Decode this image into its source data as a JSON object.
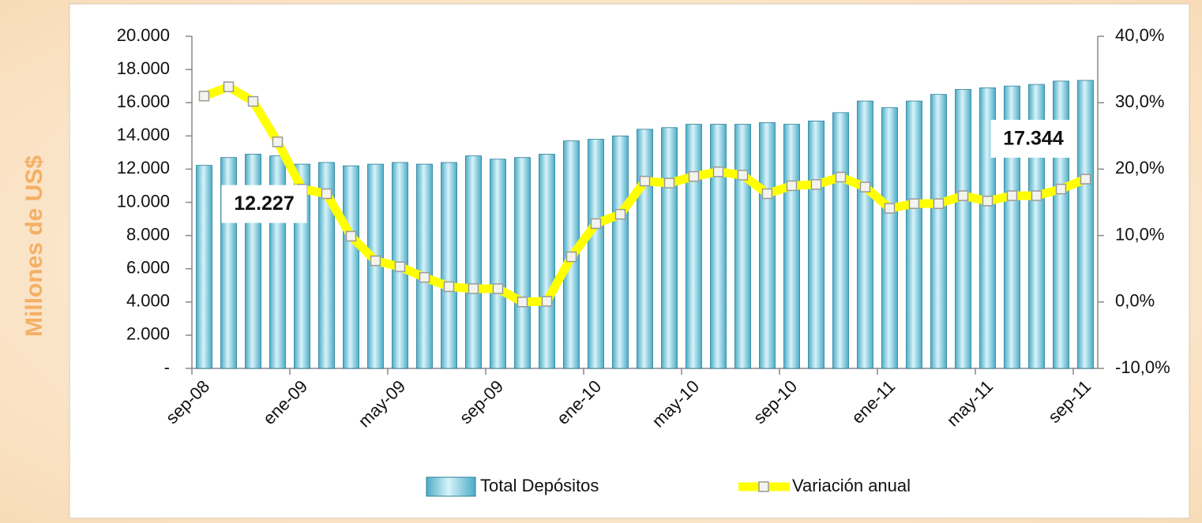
{
  "chart_data": {
    "type": "bar-line",
    "y_axis_label": "Millones de US$",
    "categories": [
      "sep-08",
      null,
      null,
      null,
      "ene-09",
      null,
      null,
      null,
      "may-09",
      null,
      null,
      null,
      "sep-09",
      null,
      null,
      null,
      "ene-10",
      null,
      null,
      null,
      "may-10",
      null,
      null,
      null,
      "sep-10",
      null,
      null,
      null,
      "ene-11",
      null,
      null,
      null,
      "may-11",
      null,
      null,
      null,
      "sep-11"
    ],
    "series": [
      {
        "name": "Total Depósitos",
        "color": "#4bacc6",
        "axis": "y",
        "values": [
          12227,
          12700,
          12900,
          12800,
          12300,
          12400,
          12200,
          12300,
          12400,
          12300,
          12400,
          12800,
          12600,
          12700,
          12900,
          13700,
          13800,
          14000,
          14400,
          14500,
          14700,
          14700,
          14700,
          14800,
          14700,
          14900,
          15400,
          16100,
          15700,
          16100,
          16500,
          16800,
          16900,
          17000,
          17100,
          17300,
          17344
        ],
        "value_labels": [
          "12.227",
          null,
          null,
          null,
          null,
          null,
          null,
          null,
          null,
          null,
          null,
          null,
          null,
          null,
          null,
          null,
          null,
          null,
          null,
          null,
          null,
          null,
          null,
          null,
          null,
          null,
          null,
          null,
          null,
          null,
          null,
          null,
          null,
          null,
          null,
          null,
          "17.344"
        ]
      },
      {
        "name": "Variación anual",
        "color": "#ffff00",
        "axis": "y2",
        "values": [
          31.0,
          32.4,
          30.2,
          24.1,
          17.0,
          16.3,
          9.9,
          6.2,
          5.3,
          3.7,
          2.3,
          2.0,
          2.0,
          0.0,
          0.1,
          6.8,
          11.8,
          13.2,
          18.2,
          17.9,
          18.9,
          19.6,
          19.1,
          16.3,
          17.5,
          17.7,
          18.8,
          17.3,
          14.1,
          14.8,
          14.8,
          16.0,
          15.2,
          16.0,
          16.0,
          17.0,
          18.5
        ]
      }
    ],
    "ylim": [
      0,
      20000
    ],
    "yticks": [
      {
        "value": 0,
        "label": "-"
      },
      {
        "value": 2000,
        "label": "2.000"
      },
      {
        "value": 4000,
        "label": "4.000"
      },
      {
        "value": 6000,
        "label": "6.000"
      },
      {
        "value": 8000,
        "label": "8.000"
      },
      {
        "value": 10000,
        "label": "10.000"
      },
      {
        "value": 12000,
        "label": "12.000"
      },
      {
        "value": 14000,
        "label": "14.000"
      },
      {
        "value": 16000,
        "label": "16.000"
      },
      {
        "value": 18000,
        "label": "18.000"
      },
      {
        "value": 20000,
        "label": "20.000"
      }
    ],
    "y2lim": [
      -10,
      40
    ],
    "y2ticks": [
      {
        "value": -10,
        "label": "-10,0%"
      },
      {
        "value": 0,
        "label": "0,0%"
      },
      {
        "value": 10,
        "label": "10,0%"
      },
      {
        "value": 20,
        "label": "20,0%"
      },
      {
        "value": 30,
        "label": "30,0%"
      },
      {
        "value": 40,
        "label": "40,0%"
      }
    ],
    "grid": false,
    "legend": "bottom"
  }
}
